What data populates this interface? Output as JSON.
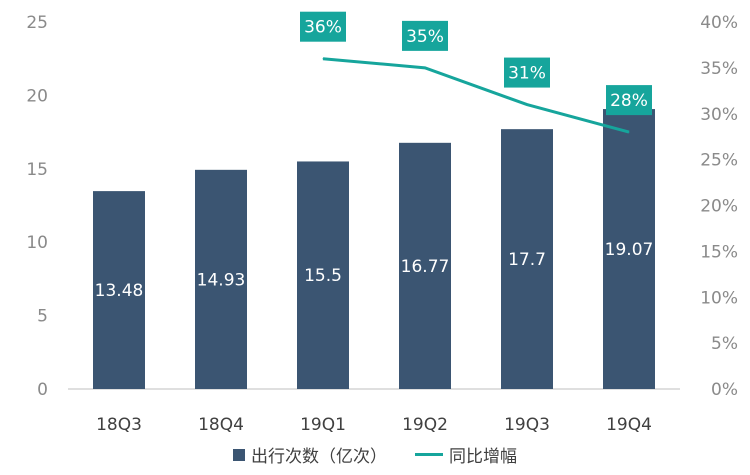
{
  "chart_data": {
    "type": "bar",
    "categories": [
      "18Q3",
      "18Q4",
      "19Q1",
      "19Q2",
      "19Q3",
      "19Q4"
    ],
    "series": [
      {
        "name": "出行次数（亿次）",
        "type": "bar",
        "axis": "left",
        "values": [
          13.48,
          14.93,
          15.5,
          16.77,
          17.7,
          19.07
        ],
        "labels": [
          "13.48",
          "14.93",
          "15.5",
          "16.77",
          "17.7",
          "19.07"
        ]
      },
      {
        "name": "同比增幅",
        "type": "line",
        "axis": "right",
        "values": [
          null,
          null,
          36,
          35,
          31,
          28
        ],
        "labels": [
          "",
          "",
          "36%",
          "35%",
          "31%",
          "28%"
        ]
      }
    ],
    "ylim_left": [
      0,
      25
    ],
    "yticks_left": [
      "0",
      "5",
      "10",
      "15",
      "20",
      "25"
    ],
    "ylim_right": [
      0,
      40
    ],
    "yticks_right": [
      "0%",
      "5%",
      "10%",
      "15%",
      "20%",
      "25%",
      "30%",
      "35%",
      "40%"
    ],
    "legend_position": "bottom",
    "grid": false
  },
  "colors": {
    "bar": "#3b5572",
    "line": "#16a59c",
    "label_box": "#16a59c"
  }
}
